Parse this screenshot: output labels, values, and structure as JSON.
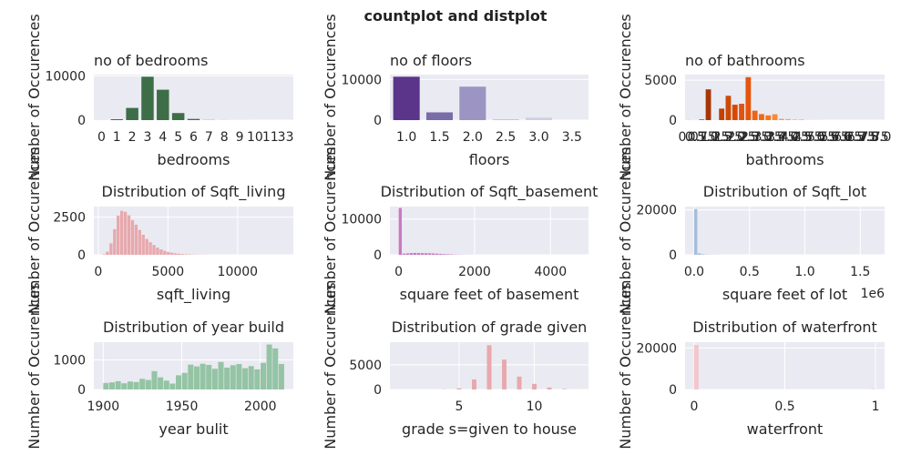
{
  "figure": {
    "suptitle": "countplot and distplot",
    "background": "#ffffff",
    "axes_face": "#eaeaf2"
  },
  "chart_data": [
    {
      "type": "bar",
      "id": "bedrooms",
      "title": "no of bedrooms",
      "xlabel": "bedrooms",
      "ylabel": "Number of Occurences",
      "categories": [
        "0",
        "1",
        "2",
        "3",
        "4",
        "5",
        "6",
        "7",
        "8",
        "9",
        "10",
        "11",
        "33"
      ],
      "values": [
        13,
        199,
        2760,
        9824,
        6882,
        1601,
        272,
        38,
        13,
        6,
        3,
        1,
        1
      ],
      "ylim": [
        0,
        10300
      ],
      "yticks": [
        0,
        10000
      ],
      "color": "#3d6e47"
    },
    {
      "type": "bar",
      "id": "floors",
      "title": "no of floors",
      "xlabel": "floors",
      "ylabel": "Number of Occurences",
      "categories": [
        "1.0",
        "1.5",
        "2.0",
        "2.5",
        "3.0",
        "3.5"
      ],
      "values": [
        10680,
        1910,
        8241,
        161,
        613,
        8
      ],
      "ylim": [
        0,
        11200
      ],
      "yticks": [
        0,
        10000
      ],
      "colors": [
        "#5b3589",
        "#7a6ca7",
        "#9c94c2",
        "#b9b5d6",
        "#d0cee3",
        "#e1e0ec"
      ]
    },
    {
      "type": "bar",
      "id": "bathrooms",
      "title": "no of bathrooms",
      "xlabel": "bathrooms",
      "ylabel": "Number of Occurences",
      "categories": [
        "0.0",
        "0.5",
        "0.75",
        "1.0",
        "1.25",
        "1.5",
        "1.75",
        "2.0",
        "2.25",
        "2.5",
        "2.75",
        "3.0",
        "3.25",
        "3.5",
        "3.75",
        "4.0",
        "4.25",
        "4.5",
        "4.75",
        "5.0",
        "5.25",
        "5.5",
        "5.75",
        "6.0",
        "6.25",
        "6.5",
        "6.75",
        "7.5",
        "7.75",
        "8.0"
      ],
      "tick_labels": [
        "0.0",
        "0.5",
        "0.75",
        "1.0",
        "1.25",
        "1.5",
        "1.75",
        "2.0",
        "2.25",
        "2.5",
        "2.75",
        "3.0",
        "3.25",
        "3.5",
        "3.75",
        "4.0",
        "4.25",
        "4.5",
        "4.75",
        "5.0",
        "5.25",
        "5.5",
        "5.75",
        "6.0",
        "6.25",
        "6.5",
        "6.75",
        "7.5",
        "7.75",
        "8.0"
      ],
      "values": [
        10,
        4,
        72,
        3852,
        9,
        1446,
        3048,
        1930,
        2047,
        5380,
        1185,
        753,
        589,
        731,
        155,
        136,
        79,
        100,
        23,
        21,
        13,
        10,
        4,
        6,
        2,
        2,
        2,
        1,
        1,
        2
      ],
      "ylim": [
        0,
        5700
      ],
      "yticks": [
        0,
        5000
      ],
      "colors": [
        "#7f2704",
        "#8c2d04",
        "#993204",
        "#a63603",
        "#b33c04",
        "#c04204",
        "#cc4a06",
        "#d94801",
        "#e05410",
        "#e6550d",
        "#ec6418",
        "#f16913",
        "#f57622",
        "#f98a35",
        "#fb9a46",
        "#fca856",
        "#fdb466",
        "#fdbf78",
        "#fdc98a",
        "#fdd39c",
        "#fedcad",
        "#fee3bd",
        "#feeacc",
        "#fff0da",
        "#fff5e6",
        "#fff8ee",
        "#fffbf5",
        "#fffbf5",
        "#fffbf5",
        "#fffbf5"
      ]
    },
    {
      "type": "histogram",
      "id": "sqft_living",
      "title": "Distribution of Sqft_living",
      "xlabel": "sqft_living",
      "ylabel": "Number of Occurences",
      "xlim": [
        -320,
        14000
      ],
      "ylim": [
        0,
        3200
      ],
      "xticks": [
        0,
        5000,
        10000
      ],
      "yticks": [
        0,
        2500
      ],
      "bin_start": 290,
      "bin_width": 257,
      "counts": [
        30,
        210,
        760,
        1700,
        2600,
        2920,
        2850,
        2620,
        2300,
        2000,
        1650,
        1330,
        1050,
        830,
        650,
        480,
        360,
        260,
        190,
        140,
        100,
        70,
        50,
        35,
        25,
        18,
        12,
        8,
        5,
        3
      ],
      "color": "#e7a9ad"
    },
    {
      "type": "histogram",
      "id": "sqft_basement",
      "title": "Distribution of Sqft_basement",
      "xlabel": "square feet of basement",
      "ylabel": "Number of Occurences",
      "xlim": [
        -230,
        5000
      ],
      "ylim": [
        0,
        13500
      ],
      "xticks": [
        0,
        2000,
        4000
      ],
      "yticks": [
        0,
        10000
      ],
      "bin_start": 0,
      "bin_width": 97,
      "counts": [
        13126,
        310,
        410,
        490,
        520,
        500,
        480,
        460,
        430,
        380,
        330,
        260,
        200,
        150,
        100,
        70,
        50,
        30,
        20,
        15,
        10,
        8,
        5,
        3,
        2,
        2,
        1,
        1
      ],
      "color": "#c77ac0"
    },
    {
      "type": "histogram",
      "id": "sqft_lot",
      "title": "Distribution of Sqft_lot",
      "xlabel": "square feet of lot",
      "ylabel": "Number of Occurences",
      "offset_text": "1e6",
      "xlim": [
        -82000,
        1720000
      ],
      "ylim": [
        0,
        21500
      ],
      "xticks": [
        0.0,
        0.5,
        1.0,
        1.5
      ],
      "xtick_scale": 1000000,
      "yticks": [
        0,
        20000
      ],
      "bin_start": 520,
      "bin_width": 33000,
      "counts": [
        20400,
        700,
        250,
        110,
        60,
        40,
        25,
        15,
        10,
        8
      ],
      "color": "#a6bddb"
    },
    {
      "type": "histogram",
      "id": "yr_built",
      "title": "Distribution of year build",
      "xlabel": "year bulit",
      "ylabel": "Number of Occurences",
      "xlim": [
        1894,
        2021
      ],
      "ylim": [
        0,
        1600
      ],
      "xticks": [
        1900,
        1950,
        2000
      ],
      "yticks": [
        0,
        1000
      ],
      "bin_start": 1900,
      "bin_width": 3.85,
      "counts": [
        220,
        240,
        280,
        210,
        270,
        250,
        360,
        320,
        620,
        410,
        300,
        200,
        480,
        560,
        840,
        780,
        870,
        830,
        700,
        930,
        740,
        820,
        860,
        720,
        790,
        680,
        900,
        1520,
        1390,
        860
      ],
      "color": "#94c4a4"
    },
    {
      "type": "histogram",
      "id": "grade",
      "title": "Distribution of  grade given",
      "xlabel": "grade s=given to house",
      "ylabel": "Number of Occurences",
      "xlim": [
        0.4,
        13.6
      ],
      "ylim": [
        0,
        9600
      ],
      "xticks": [
        5,
        10
      ],
      "yticks": [
        0,
        5000
      ],
      "bars": [
        {
          "x": 1,
          "count": 1
        },
        {
          "x": 3,
          "count": 3
        },
        {
          "x": 4,
          "count": 29
        },
        {
          "x": 5,
          "count": 242
        },
        {
          "x": 6,
          "count": 2038
        },
        {
          "x": 7,
          "count": 8981
        },
        {
          "x": 8,
          "count": 6068
        },
        {
          "x": 9,
          "count": 2615
        },
        {
          "x": 10,
          "count": 1134
        },
        {
          "x": 11,
          "count": 399
        },
        {
          "x": 12,
          "count": 90
        },
        {
          "x": 13,
          "count": 13
        }
      ],
      "bar_width": 0.3,
      "color": "#e7a9ad"
    },
    {
      "type": "histogram",
      "id": "waterfront",
      "title": "Distribution of waterfront",
      "xlabel": "waterfront",
      "ylabel": "Number of Occurences",
      "xlim": [
        -0.05,
        1.05
      ],
      "ylim": [
        0,
        22800
      ],
      "xticks": [
        0.0,
        0.5,
        1.0
      ],
      "yticks": [
        0,
        20000
      ],
      "bars": [
        {
          "x": 0.012,
          "count": 21450
        },
        {
          "x": 0.988,
          "count": 163
        }
      ],
      "bar_width": 0.025,
      "color": "#f4c6cc"
    }
  ]
}
